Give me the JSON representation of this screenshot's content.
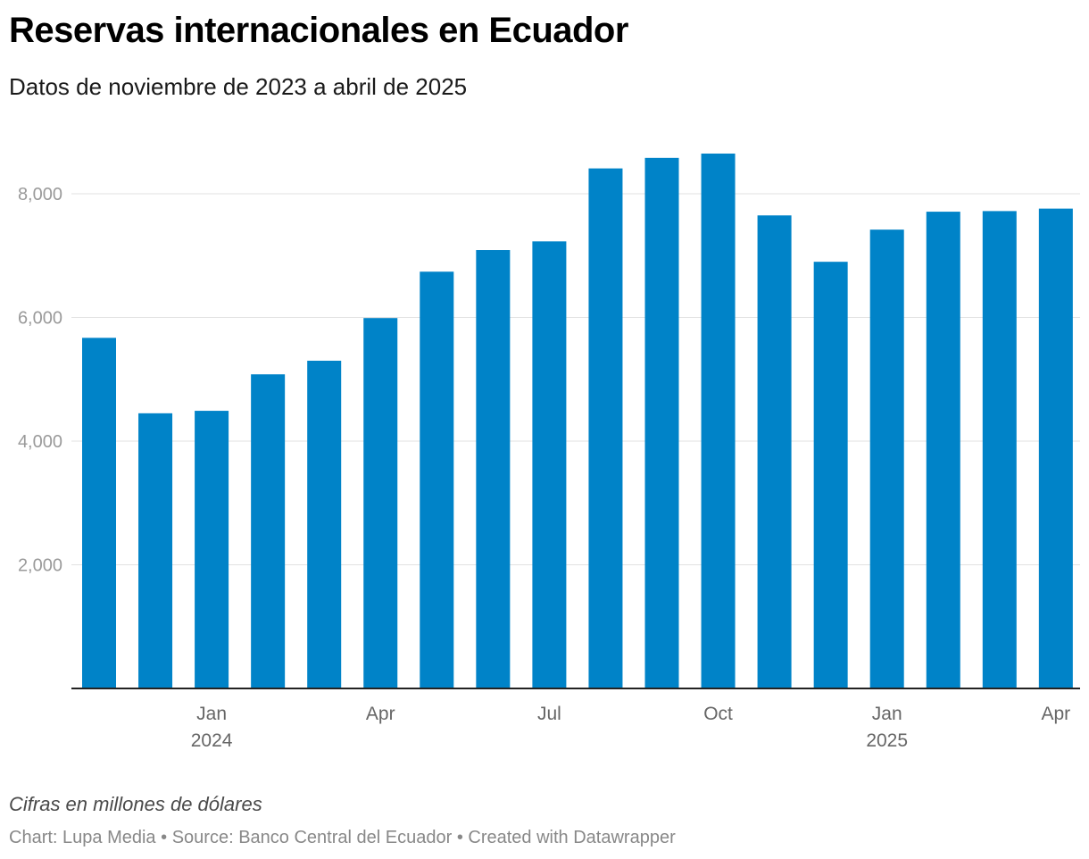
{
  "title": "Reservas internacionales en Ecuador",
  "subtitle": "Datos de noviembre de 2023 a abril de 2025",
  "notes": "Cifras en millones de dólares",
  "footer": {
    "chart_label": "Chart:",
    "chart_by": "Lupa Media",
    "source_label": "Source:",
    "source": "Banco Central del Ecuador",
    "created": "Created with Datawrapper",
    "separator": "•"
  },
  "chart_data": {
    "type": "bar",
    "title": "Reservas internacionales en Ecuador",
    "subtitle": "Datos de noviembre de 2023 a abril de 2025",
    "xlabel": "",
    "ylabel": "",
    "color": "#0083c8",
    "ylim": [
      0,
      8900
    ],
    "yticks": [
      2000,
      4000,
      6000,
      8000
    ],
    "ytick_labels": [
      "2,000",
      "4,000",
      "6,000",
      "8,000"
    ],
    "grid": true,
    "legend": "none",
    "categories": [
      "2023-11",
      "2023-12",
      "2024-01",
      "2024-02",
      "2024-03",
      "2024-04",
      "2024-05",
      "2024-06",
      "2024-07",
      "2024-08",
      "2024-09",
      "2024-10",
      "2024-11",
      "2024-12",
      "2025-01",
      "2025-02",
      "2025-03",
      "2025-04"
    ],
    "values": [
      5670,
      4450,
      4490,
      5080,
      5300,
      5990,
      6740,
      7090,
      7230,
      8410,
      8580,
      8650,
      7650,
      6900,
      7420,
      7710,
      7720,
      7760
    ],
    "xtick_labels": [
      {
        "category": "2024-01",
        "month": "Jan",
        "year": "2024"
      },
      {
        "category": "2024-04",
        "month": "Apr",
        "year": ""
      },
      {
        "category": "2024-07",
        "month": "Jul",
        "year": ""
      },
      {
        "category": "2024-10",
        "month": "Oct",
        "year": ""
      },
      {
        "category": "2025-01",
        "month": "Jan",
        "year": "2025"
      },
      {
        "category": "2025-04",
        "month": "Apr",
        "year": ""
      }
    ]
  }
}
